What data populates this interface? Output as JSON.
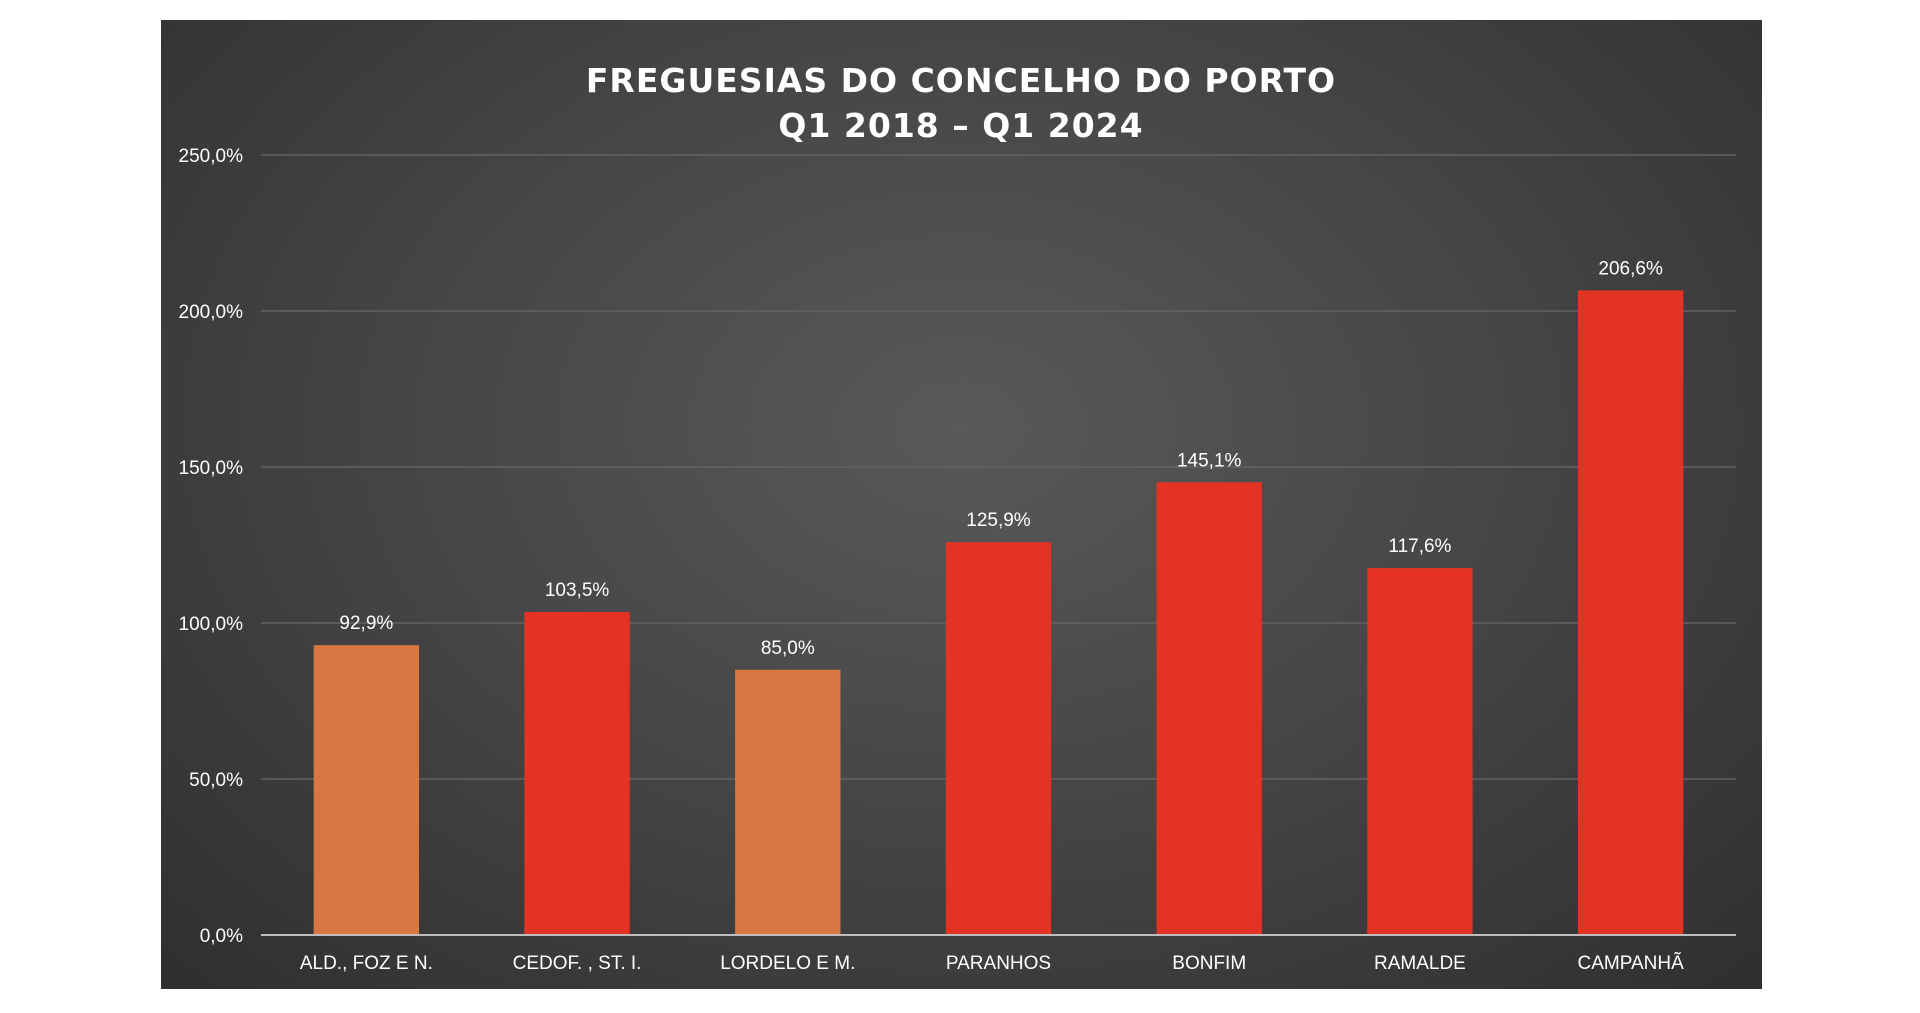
{
  "chart_data": {
    "type": "bar",
    "title": [
      "FREGUESIAS DO CONCELHO DO PORTO",
      "Q1 2018 –  Q1 2024"
    ],
    "categories": [
      "ALD., FOZ E N.",
      "CEDOF. , ST. I.",
      "LORDELO E M.",
      "PARANHOS",
      "BONFIM",
      "RAMALDE",
      "CAMPANHÃ"
    ],
    "values": [
      92.9,
      103.5,
      85.0,
      125.9,
      145.1,
      117.6,
      206.6
    ],
    "value_labels": [
      "92,9%",
      "103,5%",
      "85,0%",
      "125,9%",
      "145,1%",
      "117,6%",
      "206,6%"
    ],
    "bar_colors": [
      "#d97743",
      "#e53223",
      "#d97743",
      "#e53223",
      "#e53223",
      "#e53223",
      "#e53223"
    ],
    "ylim": [
      0,
      250
    ],
    "yticks": [
      0,
      50,
      100,
      150,
      200,
      250
    ],
    "ytick_labels": [
      "0,0%",
      "50,0%",
      "100,0%",
      "150,0%",
      "200,0%",
      "250,0%"
    ],
    "grid": true,
    "xlabel": "",
    "ylabel": "",
    "background": "#474747",
    "gridline_color": "#626262"
  }
}
